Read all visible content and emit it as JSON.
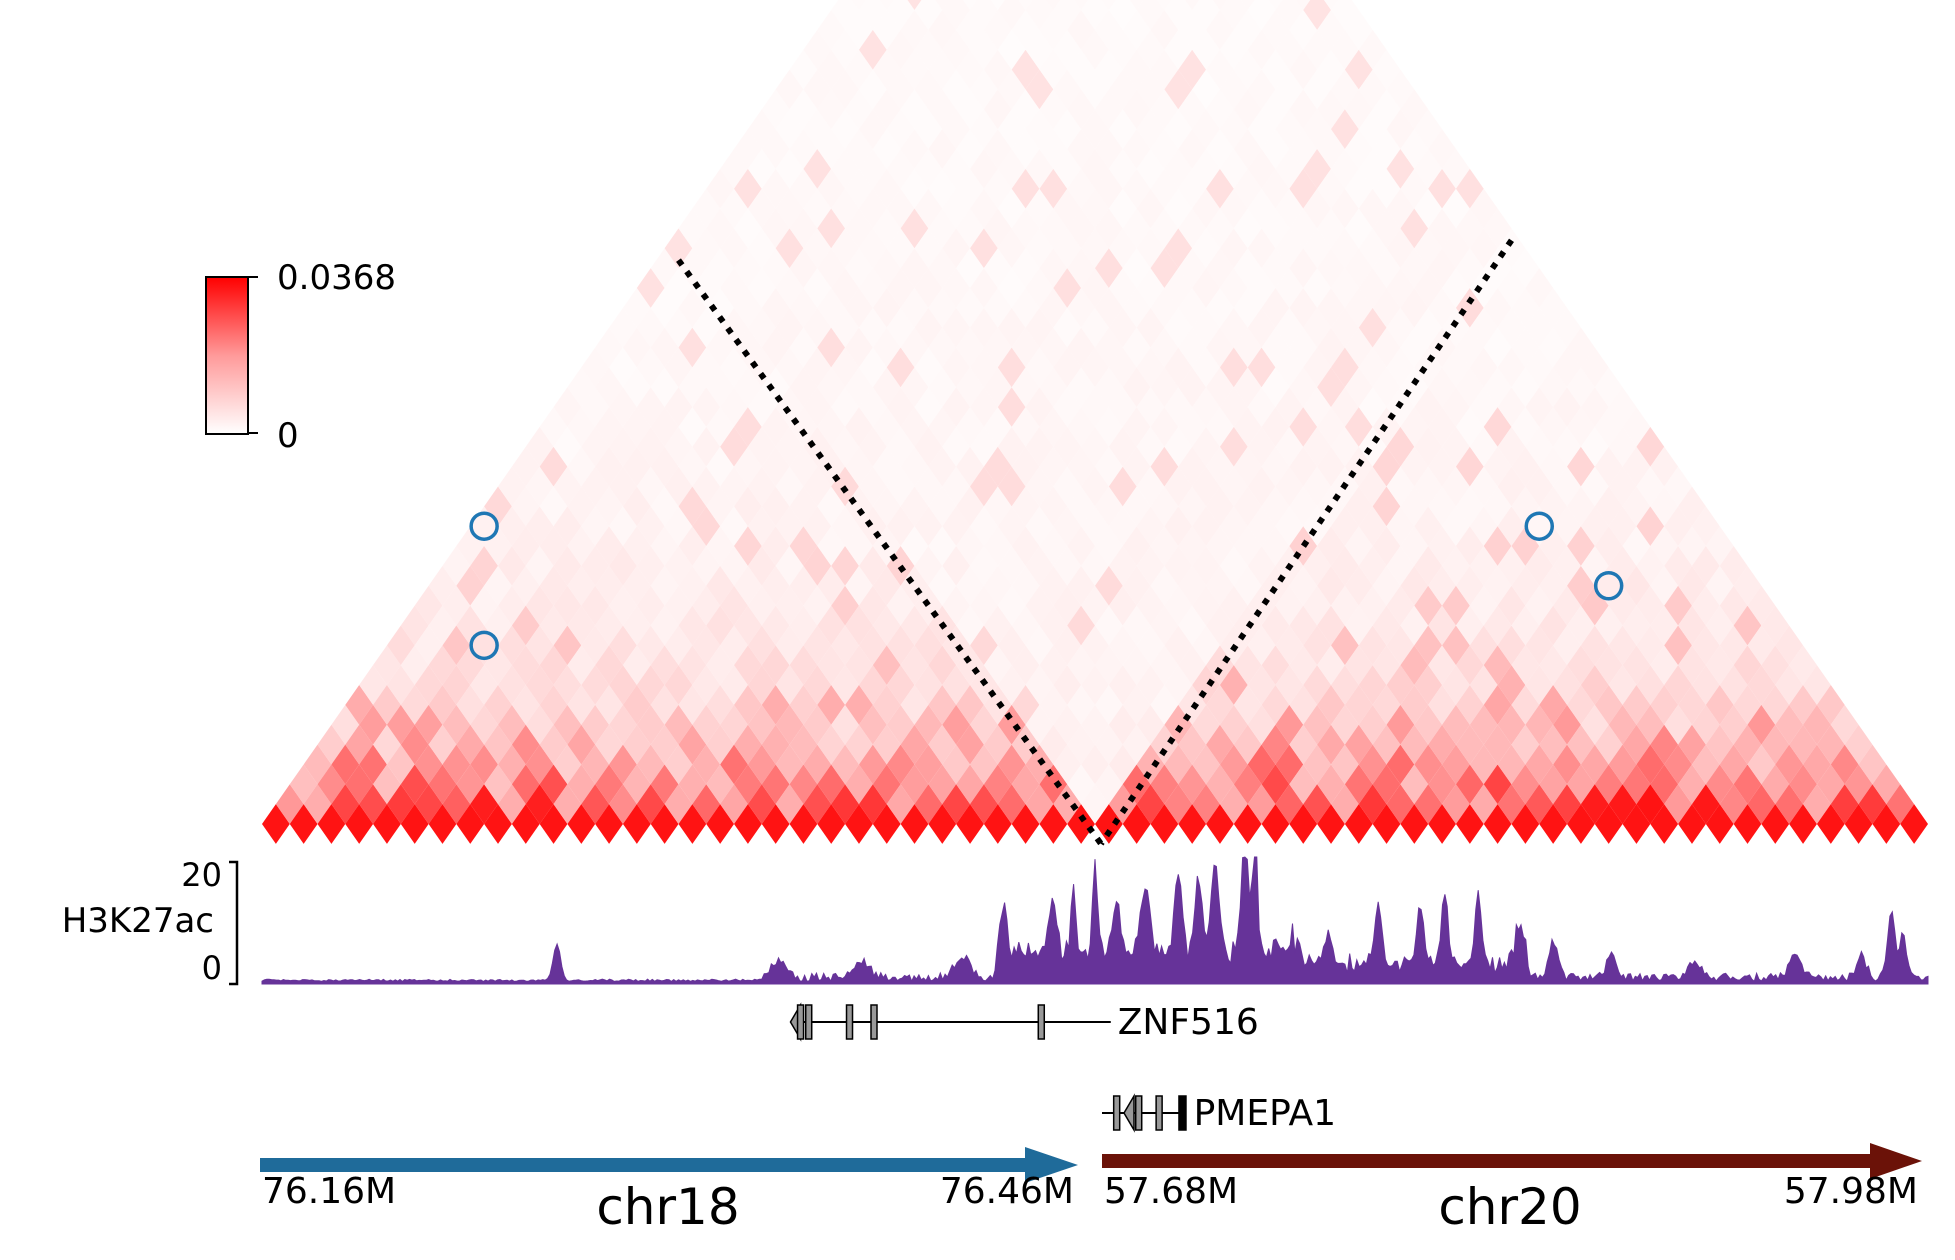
{
  "chart_data": {
    "type": "heatmap",
    "colorbar": {
      "max_label": "0.0368",
      "min_label": "0",
      "max": 0.0368,
      "min": 0,
      "colormap": [
        "#ffffff",
        "#ff0000"
      ]
    },
    "heatmap": {
      "bins": 60,
      "junction_bin": 30,
      "diagonal_value": 0.034,
      "loops": [
        {
          "i": 0,
          "j": 15
        },
        {
          "i": 3,
          "j": 12
        },
        {
          "i": 38,
          "j": 53
        },
        {
          "i": 42,
          "j": 54
        }
      ],
      "loop_color": "#1f77b4",
      "tad_lines": [
        {
          "from": "left",
          "apex_bin": 15
        },
        {
          "from": "right",
          "apex_bin": 45
        }
      ]
    },
    "track": {
      "label": "H3K27ac",
      "ymax_label": "20",
      "ymin_label": "0",
      "ylim": [
        0,
        20
      ],
      "color": "#663399",
      "peaks": [
        {
          "x": 0.177,
          "h": 5.8,
          "w": 0.003
        },
        {
          "x": 0.31,
          "h": 2.5,
          "w": 0.006
        },
        {
          "x": 0.36,
          "h": 2.8,
          "w": 0.006
        },
        {
          "x": 0.42,
          "h": 3.5,
          "w": 0.006
        },
        {
          "x": 0.445,
          "h": 7.5,
          "w": 0.003
        },
        {
          "x": 0.475,
          "h": 8.0,
          "w": 0.003
        },
        {
          "x": 0.487,
          "h": 11.0,
          "w": 0.002
        },
        {
          "x": 0.5,
          "h": 15.5,
          "w": 0.002
        },
        {
          "x": 0.513,
          "h": 8.0,
          "w": 0.003
        },
        {
          "x": 0.53,
          "h": 10.0,
          "w": 0.004
        },
        {
          "x": 0.55,
          "h": 13.0,
          "w": 0.003
        },
        {
          "x": 0.562,
          "h": 11.0,
          "w": 0.003
        },
        {
          "x": 0.572,
          "h": 14.0,
          "w": 0.003
        },
        {
          "x": 0.59,
          "h": 18.5,
          "w": 0.003
        },
        {
          "x": 0.596,
          "h": 20.0,
          "w": 0.002
        },
        {
          "x": 0.62,
          "h": 4.0,
          "w": 0.004
        },
        {
          "x": 0.64,
          "h": 4.5,
          "w": 0.003
        },
        {
          "x": 0.67,
          "h": 9.5,
          "w": 0.003
        },
        {
          "x": 0.695,
          "h": 8.5,
          "w": 0.003
        },
        {
          "x": 0.71,
          "h": 10.0,
          "w": 0.003
        },
        {
          "x": 0.73,
          "h": 11.0,
          "w": 0.003
        },
        {
          "x": 0.755,
          "h": 6.0,
          "w": 0.004
        },
        {
          "x": 0.775,
          "h": 5.5,
          "w": 0.004
        },
        {
          "x": 0.81,
          "h": 3.5,
          "w": 0.004
        },
        {
          "x": 0.86,
          "h": 2.5,
          "w": 0.005
        },
        {
          "x": 0.92,
          "h": 3.5,
          "w": 0.005
        },
        {
          "x": 0.96,
          "h": 3.5,
          "w": 0.004
        },
        {
          "x": 0.978,
          "h": 10.0,
          "w": 0.003
        },
        {
          "x": 0.985,
          "h": 7.0,
          "w": 0.003
        }
      ]
    },
    "genes": [
      {
        "name": "ZNF516",
        "chrom": "chr18",
        "start": 0.655,
        "end": 0.985,
        "strand": "-",
        "exons": [
          0.66,
          0.67,
          0.72,
          0.75,
          0.955
        ]
      },
      {
        "name": "PMEPA1",
        "chrom": "chr20",
        "start": 0.0,
        "end": 0.1,
        "strand": "-",
        "exons": [
          0.018,
          0.045,
          0.07,
          0.098
        ]
      }
    ],
    "chromosomes": [
      {
        "name": "chr18",
        "start_label": "76.16M",
        "end_label": "76.46M",
        "color": "#1f6b9a"
      },
      {
        "name": "chr20",
        "start_label": "57.68M",
        "end_label": "57.98M",
        "color": "#6b1208"
      }
    ]
  }
}
